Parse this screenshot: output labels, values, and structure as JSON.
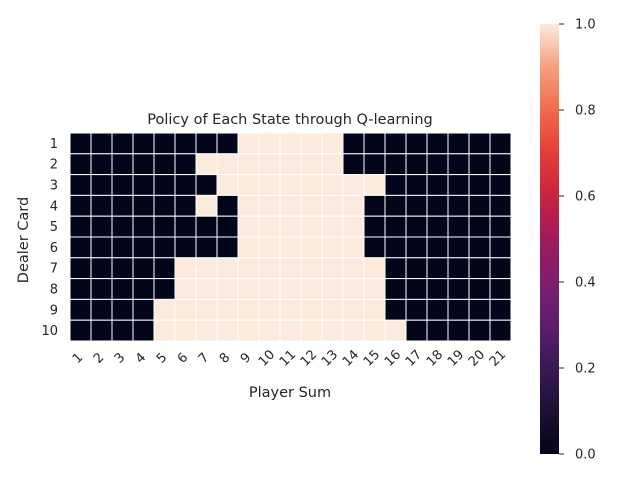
{
  "chart_data": {
    "type": "heatmap",
    "title": "Policy of Each State through Q-learning",
    "xlabel": "Player Sum",
    "ylabel": "Dealer Card",
    "x_categories": [
      "1",
      "2",
      "3",
      "4",
      "5",
      "6",
      "7",
      "8",
      "9",
      "10",
      "11",
      "12",
      "13",
      "14",
      "15",
      "16",
      "17",
      "18",
      "19",
      "20",
      "21"
    ],
    "y_categories": [
      "1",
      "2",
      "3",
      "4",
      "5",
      "6",
      "7",
      "8",
      "9",
      "10"
    ],
    "values": [
      [
        0,
        0,
        0,
        0,
        0,
        0,
        0,
        0,
        1,
        1,
        1,
        1,
        1,
        0,
        0,
        0,
        0,
        0,
        0,
        0,
        0
      ],
      [
        0,
        0,
        0,
        0,
        0,
        0,
        1,
        1,
        1,
        1,
        1,
        1,
        1,
        0,
        0,
        0,
        0,
        0,
        0,
        0,
        0
      ],
      [
        0,
        0,
        0,
        0,
        0,
        0,
        0,
        1,
        1,
        1,
        1,
        1,
        1,
        1,
        1,
        0,
        0,
        0,
        0,
        0,
        0
      ],
      [
        0,
        0,
        0,
        0,
        0,
        0,
        1,
        0,
        1,
        1,
        1,
        1,
        1,
        1,
        0,
        0,
        0,
        0,
        0,
        0,
        0
      ],
      [
        0,
        0,
        0,
        0,
        0,
        0,
        0,
        0,
        1,
        1,
        1,
        1,
        1,
        1,
        0,
        0,
        0,
        0,
        0,
        0,
        0
      ],
      [
        0,
        0,
        0,
        0,
        0,
        0,
        0,
        0,
        1,
        1,
        1,
        1,
        1,
        1,
        0,
        0,
        0,
        0,
        0,
        0,
        0
      ],
      [
        0,
        0,
        0,
        0,
        0,
        1,
        1,
        1,
        1,
        1,
        1,
        1,
        1,
        1,
        1,
        0,
        0,
        0,
        0,
        0,
        0
      ],
      [
        0,
        0,
        0,
        0,
        0,
        1,
        1,
        1,
        1,
        1,
        1,
        1,
        1,
        1,
        1,
        0,
        0,
        0,
        0,
        0,
        0
      ],
      [
        0,
        0,
        0,
        0,
        1,
        1,
        1,
        1,
        1,
        1,
        1,
        1,
        1,
        1,
        1,
        0,
        0,
        0,
        0,
        0,
        0
      ],
      [
        0,
        0,
        0,
        0,
        1,
        1,
        1,
        1,
        1,
        1,
        1,
        1,
        1,
        1,
        1,
        1,
        0,
        0,
        0,
        0,
        0
      ]
    ],
    "vmin": 0,
    "vmax": 1,
    "colorbar_ticks": [
      "0.0",
      "0.2",
      "0.4",
      "0.6",
      "0.8",
      "1.0"
    ],
    "colormap": "rocket",
    "cell_gridlines": true
  }
}
